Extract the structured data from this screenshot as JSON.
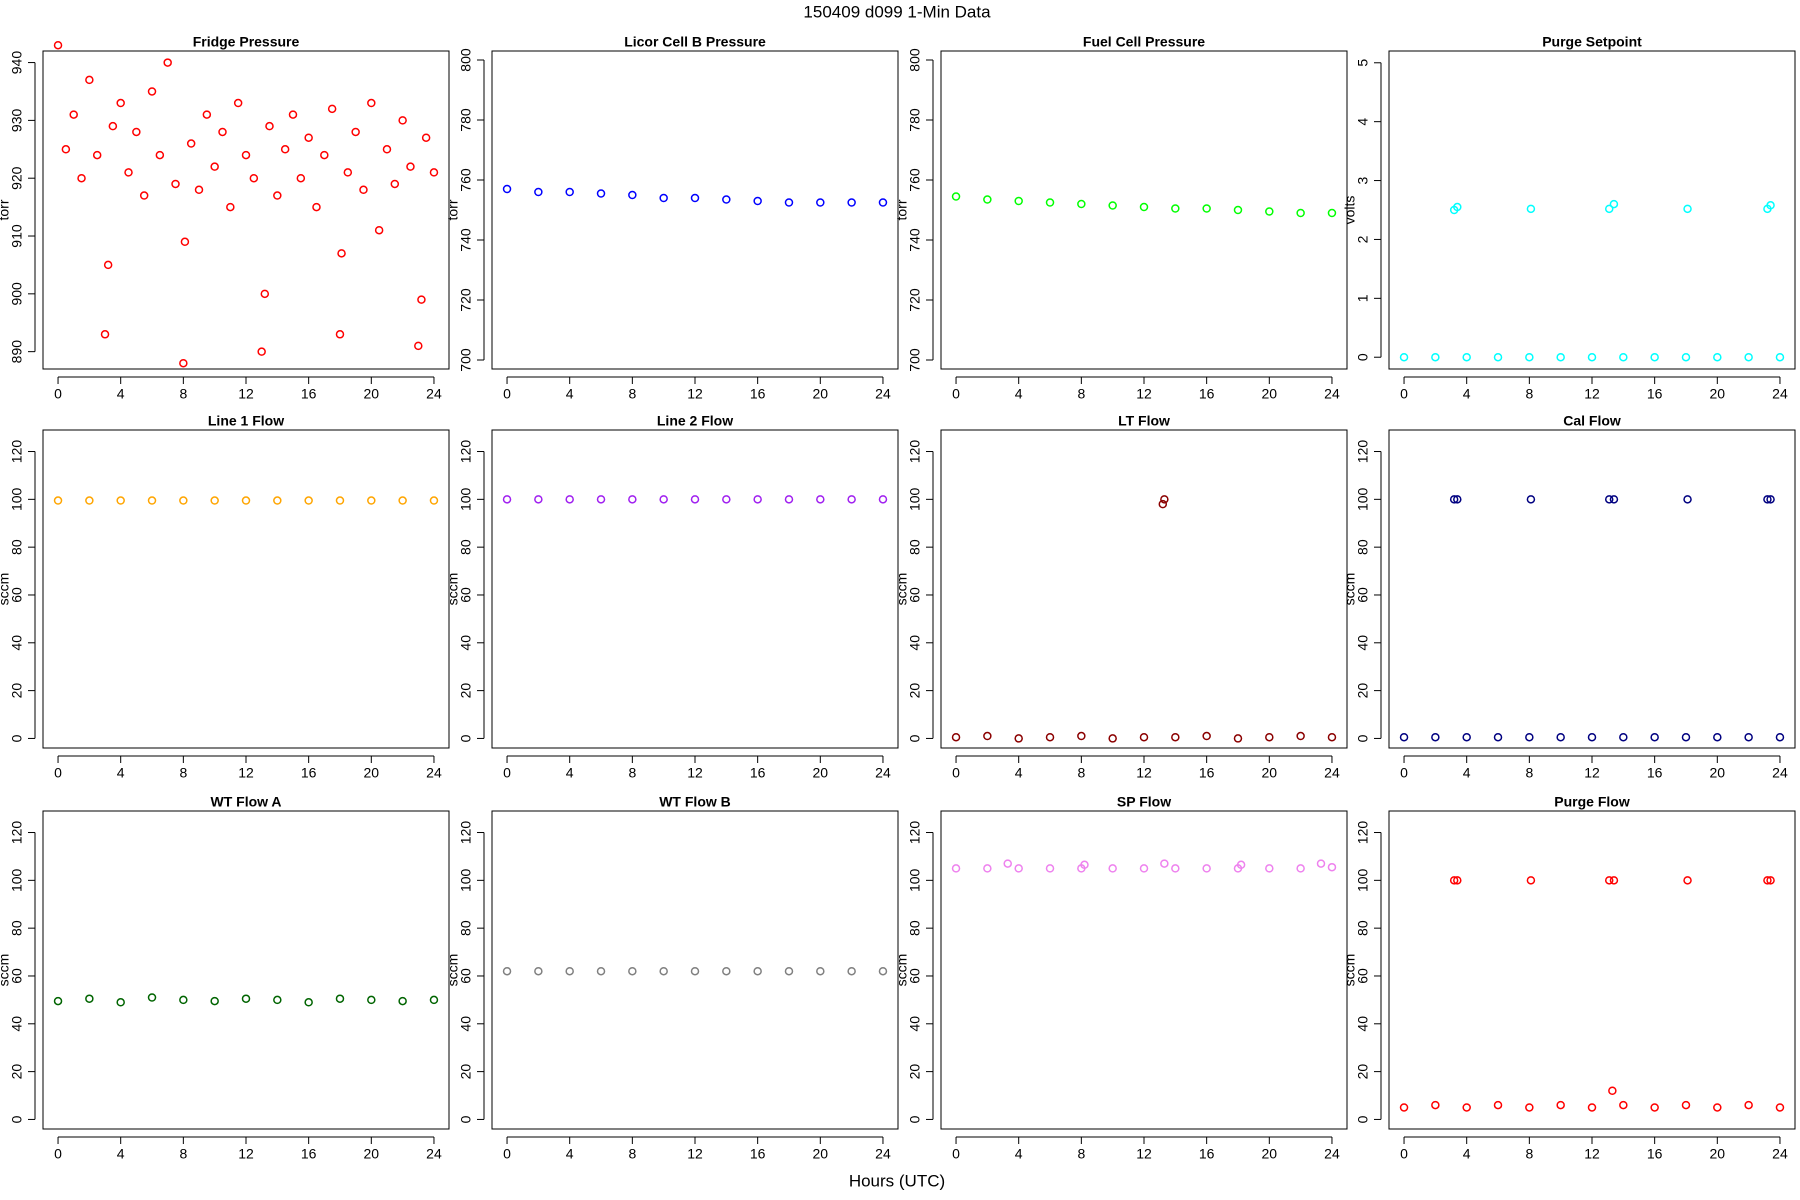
{
  "title": "150409   d099   1-Min Data",
  "xlabel": "Hours (UTC)",
  "chart_data": [
    {
      "type": "scatter",
      "title": "Fridge Pressure",
      "ylabel": "torr",
      "color": "#ff0000",
      "xlim": [
        -0.96,
        24.96
      ],
      "xticks": [
        0,
        4,
        8,
        12,
        16,
        20,
        24
      ],
      "ylim": [
        887,
        942
      ],
      "yticks": [
        890,
        900,
        910,
        920,
        930,
        940
      ],
      "x": [
        0,
        0.5,
        1,
        1.5,
        2,
        2.5,
        3,
        3.2,
        3.5,
        4,
        4.5,
        5,
        5.5,
        6,
        6.5,
        7,
        7.5,
        8,
        8.1,
        8.5,
        9,
        9.5,
        10,
        10.5,
        11,
        11.5,
        12,
        12.5,
        13,
        13.2,
        13.5,
        14,
        14.5,
        15,
        15.5,
        16,
        16.5,
        17,
        17.5,
        18,
        18.1,
        18.5,
        19,
        19.5,
        20,
        20.5,
        21,
        21.5,
        22,
        22.5,
        23,
        23.2,
        23.5,
        24
      ],
      "values": [
        943,
        925,
        931,
        920,
        937,
        924,
        893,
        905,
        929,
        933,
        921,
        928,
        917,
        935,
        924,
        940,
        919,
        888,
        909,
        926,
        918,
        931,
        922,
        928,
        915,
        933,
        924,
        920,
        890,
        900,
        929,
        917,
        925,
        931,
        920,
        927,
        915,
        924,
        932,
        893,
        907,
        921,
        928,
        918,
        933,
        911,
        925,
        919,
        930,
        922,
        891,
        899,
        927,
        921
      ]
    },
    {
      "type": "scatter",
      "title": "Licor Cell B Pressure",
      "ylabel": "torr",
      "color": "#0000ff",
      "xlim": [
        -0.96,
        24.96
      ],
      "xticks": [
        0,
        4,
        8,
        12,
        16,
        20,
        24
      ],
      "ylim": [
        697,
        803
      ],
      "yticks": [
        700,
        720,
        740,
        760,
        780,
        800
      ],
      "x": [
        0,
        2,
        4,
        6,
        8,
        10,
        12,
        14,
        16,
        18,
        20,
        22,
        24
      ],
      "values": [
        757,
        756,
        756,
        755.5,
        755,
        754,
        754,
        753.5,
        753,
        752.5,
        752.5,
        752.5,
        752.5
      ]
    },
    {
      "type": "scatter",
      "title": "Fuel Cell Pressure",
      "ylabel": "torr",
      "color": "#00ff00",
      "xlim": [
        -0.96,
        24.96
      ],
      "xticks": [
        0,
        4,
        8,
        12,
        16,
        20,
        24
      ],
      "ylim": [
        697,
        803
      ],
      "yticks": [
        700,
        720,
        740,
        760,
        780,
        800
      ],
      "x": [
        0,
        2,
        4,
        6,
        8,
        10,
        12,
        14,
        16,
        18,
        20,
        22,
        24
      ],
      "values": [
        754.5,
        753.5,
        753,
        752.5,
        752,
        751.5,
        751,
        750.5,
        750.5,
        750,
        749.5,
        749,
        749
      ]
    },
    {
      "type": "scatter",
      "title": "Purge Setpoint",
      "ylabel": "volts",
      "color": "#00ffff",
      "xlim": [
        -0.96,
        24.96
      ],
      "xticks": [
        0,
        4,
        8,
        12,
        16,
        20,
        24
      ],
      "ylim": [
        -0.2,
        5.2
      ],
      "yticks": [
        0,
        1,
        2,
        3,
        4,
        5
      ],
      "x": [
        0,
        2,
        3.2,
        3.4,
        4,
        6,
        8,
        8.1,
        10,
        12,
        13.1,
        13.4,
        14,
        16,
        18,
        18.1,
        20,
        22,
        23.2,
        23.4,
        24
      ],
      "values": [
        0,
        0,
        2.5,
        2.55,
        0,
        0,
        0,
        2.52,
        0,
        0,
        2.52,
        2.6,
        0,
        0,
        0,
        2.52,
        0,
        0,
        2.52,
        2.58,
        0
      ]
    },
    {
      "type": "scatter",
      "title": "Line 1 Flow",
      "ylabel": "sccm",
      "color": "#ffa500",
      "xlim": [
        -0.96,
        24.96
      ],
      "xticks": [
        0,
        4,
        8,
        12,
        16,
        20,
        24
      ],
      "ylim": [
        -4,
        129
      ],
      "yticks": [
        0,
        20,
        40,
        60,
        80,
        100,
        120
      ],
      "x": [
        0,
        2,
        4,
        6,
        8,
        10,
        12,
        14,
        16,
        18,
        20,
        22,
        24
      ],
      "values": [
        99.5,
        99.5,
        99.5,
        99.5,
        99.5,
        99.5,
        99.5,
        99.5,
        99.5,
        99.5,
        99.5,
        99.5,
        99.5
      ]
    },
    {
      "type": "scatter",
      "title": "Line 2 Flow",
      "ylabel": "sccm",
      "color": "#a020f0",
      "xlim": [
        -0.96,
        24.96
      ],
      "xticks": [
        0,
        4,
        8,
        12,
        16,
        20,
        24
      ],
      "ylim": [
        -4,
        129
      ],
      "yticks": [
        0,
        20,
        40,
        60,
        80,
        100,
        120
      ],
      "x": [
        0,
        2,
        4,
        6,
        8,
        10,
        12,
        14,
        16,
        18,
        20,
        22,
        24
      ],
      "values": [
        100,
        100,
        100,
        100,
        100,
        100,
        100,
        100,
        100,
        100,
        100,
        100,
        100
      ]
    },
    {
      "type": "scatter",
      "title": "LT Flow",
      "ylabel": "sccm",
      "color": "#8b0000",
      "xlim": [
        -0.96,
        24.96
      ],
      "xticks": [
        0,
        4,
        8,
        12,
        16,
        20,
        24
      ],
      "ylim": [
        -4,
        129
      ],
      "yticks": [
        0,
        20,
        40,
        60,
        80,
        100,
        120
      ],
      "x": [
        0,
        2,
        4,
        6,
        8,
        10,
        12,
        13.2,
        13.3,
        14,
        16,
        18,
        20,
        22,
        24
      ],
      "values": [
        0.5,
        1,
        0,
        0.5,
        1,
        0,
        0.5,
        98,
        100,
        0.5,
        1,
        0,
        0.5,
        1,
        0.5
      ]
    },
    {
      "type": "scatter",
      "title": "Cal Flow",
      "ylabel": "sccm",
      "color": "#000080",
      "xlim": [
        -0.96,
        24.96
      ],
      "xticks": [
        0,
        4,
        8,
        12,
        16,
        20,
        24
      ],
      "ylim": [
        -4,
        129
      ],
      "yticks": [
        0,
        20,
        40,
        60,
        80,
        100,
        120
      ],
      "x": [
        0,
        2,
        3.2,
        3.4,
        4,
        6,
        8,
        8.1,
        10,
        12,
        13.1,
        13.4,
        14,
        16,
        18,
        18.1,
        20,
        22,
        23.2,
        23.4,
        24
      ],
      "values": [
        0.5,
        0.5,
        100,
        100,
        0.5,
        0.5,
        0.5,
        100,
        0.5,
        0.5,
        100,
        100,
        0.5,
        0.5,
        0.5,
        100,
        0.5,
        0.5,
        100,
        100,
        0.5
      ]
    },
    {
      "type": "scatter",
      "title": "WT Flow A",
      "ylabel": "sccm",
      "color": "#006400",
      "xlim": [
        -0.96,
        24.96
      ],
      "xticks": [
        0,
        4,
        8,
        12,
        16,
        20,
        24
      ],
      "ylim": [
        -4,
        129
      ],
      "yticks": [
        0,
        20,
        40,
        60,
        80,
        100,
        120
      ],
      "x": [
        0,
        2,
        4,
        6,
        8,
        10,
        12,
        14,
        16,
        18,
        20,
        22,
        24
      ],
      "values": [
        49.5,
        50.5,
        49,
        51,
        50,
        49.5,
        50.5,
        50,
        49,
        50.5,
        50,
        49.5,
        50
      ]
    },
    {
      "type": "scatter",
      "title": "WT Flow B",
      "ylabel": "sccm",
      "color": "#808080",
      "xlim": [
        -0.96,
        24.96
      ],
      "xticks": [
        0,
        4,
        8,
        12,
        16,
        20,
        24
      ],
      "ylim": [
        -4,
        129
      ],
      "yticks": [
        0,
        20,
        40,
        60,
        80,
        100,
        120
      ],
      "x": [
        0,
        2,
        4,
        6,
        8,
        10,
        12,
        14,
        16,
        18,
        20,
        22,
        24
      ],
      "values": [
        62,
        62,
        62,
        62,
        62,
        62,
        62,
        62,
        62,
        62,
        62,
        62,
        62
      ]
    },
    {
      "type": "scatter",
      "title": "SP Flow",
      "ylabel": "sccm",
      "color": "#ee82ee",
      "xlim": [
        -0.96,
        24.96
      ],
      "xticks": [
        0,
        4,
        8,
        12,
        16,
        20,
        24
      ],
      "ylim": [
        -4,
        129
      ],
      "yticks": [
        0,
        20,
        40,
        60,
        80,
        100,
        120
      ],
      "x": [
        0,
        2,
        3.3,
        4,
        6,
        8,
        8.2,
        10,
        12,
        13.3,
        14,
        16,
        18,
        18.2,
        20,
        22,
        23.3,
        24
      ],
      "values": [
        105,
        105,
        107,
        105,
        105,
        105,
        106.5,
        105,
        105,
        107,
        105,
        105,
        105,
        106.5,
        105,
        105,
        107,
        105.5
      ]
    },
    {
      "type": "scatter",
      "title": "Purge Flow",
      "ylabel": "sccm",
      "color": "#ff0000",
      "xlim": [
        -0.96,
        24.96
      ],
      "xticks": [
        0,
        4,
        8,
        12,
        16,
        20,
        24
      ],
      "ylim": [
        -4,
        129
      ],
      "yticks": [
        0,
        20,
        40,
        60,
        80,
        100,
        120
      ],
      "x": [
        0,
        2,
        3.2,
        3.4,
        4,
        6,
        8,
        8.1,
        10,
        12,
        13.1,
        13.3,
        13.4,
        14,
        16,
        18,
        18.1,
        20,
        22,
        23.2,
        23.4,
        24
      ],
      "values": [
        5,
        6,
        100,
        100,
        5,
        6,
        5,
        100,
        6,
        5,
        100,
        12,
        100,
        6,
        5,
        6,
        100,
        5,
        6,
        100,
        100,
        5
      ]
    }
  ]
}
